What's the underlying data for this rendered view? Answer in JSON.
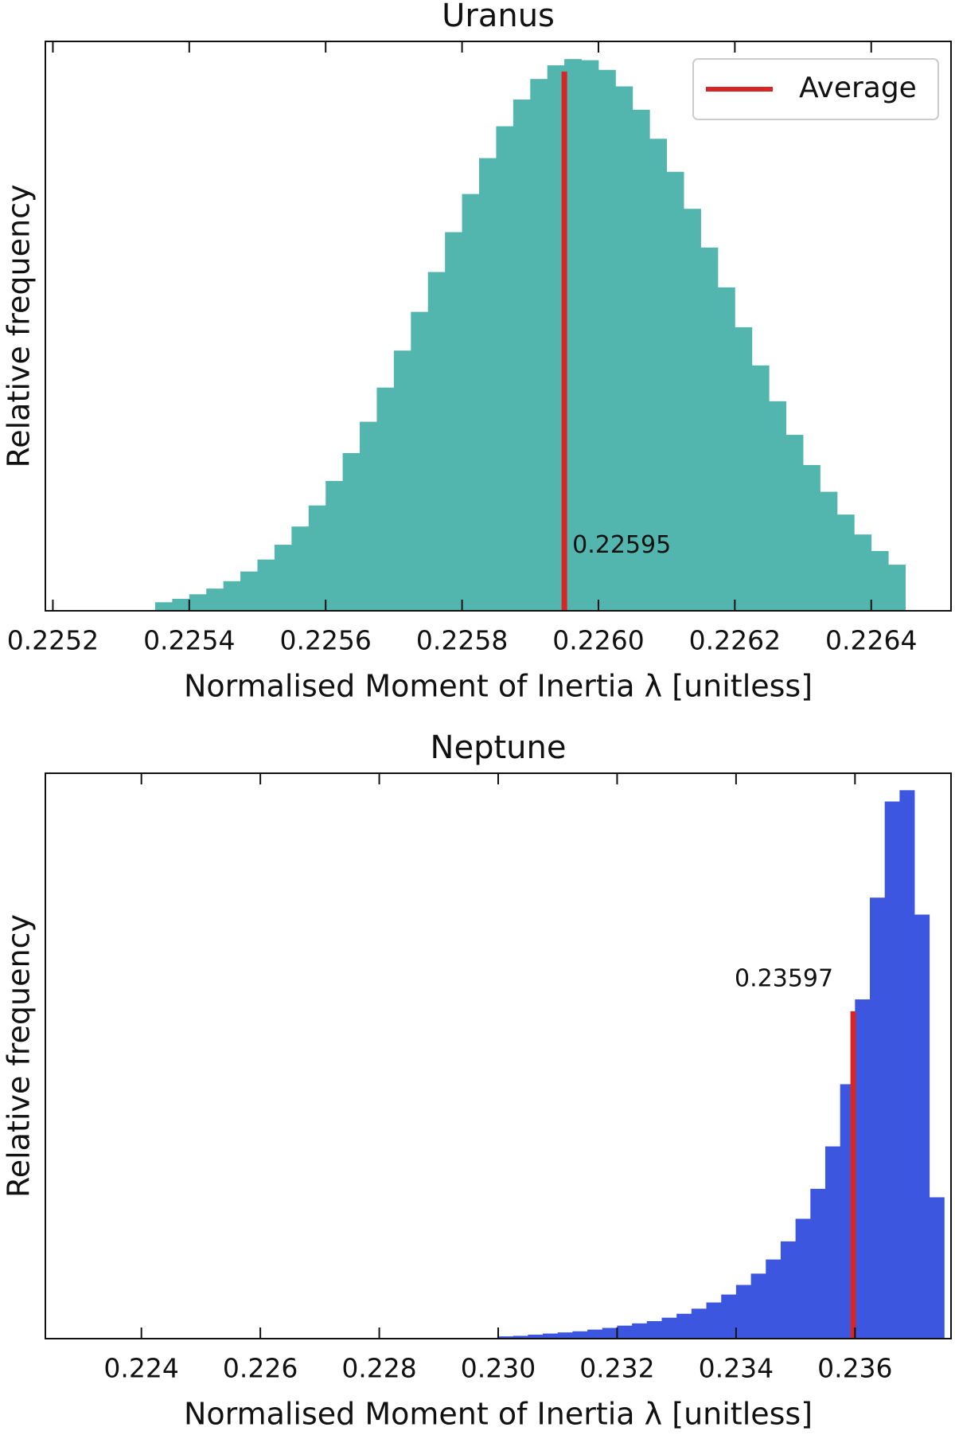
{
  "chart_data": [
    {
      "type": "histogram",
      "title": "Uranus",
      "xlabel": "Normalised Moment of Inertia λ [unitless]",
      "ylabel": "Relative frequency",
      "color": "#52b5ae",
      "bins": [
        0.22535,
        0.225375,
        0.2254,
        0.225425,
        0.22545,
        0.225475,
        0.2255,
        0.225525,
        0.22555,
        0.225575,
        0.2256,
        0.225625,
        0.22565,
        0.225675,
        0.2257,
        0.225725,
        0.22575,
        0.225775,
        0.2258,
        0.225825,
        0.22585,
        0.225875,
        0.2259,
        0.225925,
        0.22595,
        0.225975,
        0.226,
        0.226025,
        0.22605,
        0.226075,
        0.2261,
        0.226125,
        0.22615,
        0.226175,
        0.2262,
        0.226225,
        0.22625,
        0.226275,
        0.2263,
        0.226325,
        0.22635,
        0.226375,
        0.2264,
        0.226425,
        0.22645
      ],
      "values": [
        0.015,
        0.021,
        0.029,
        0.039,
        0.052,
        0.069,
        0.09,
        0.116,
        0.148,
        0.185,
        0.228,
        0.277,
        0.332,
        0.392,
        0.457,
        0.525,
        0.595,
        0.665,
        0.732,
        0.795,
        0.851,
        0.898,
        0.934,
        0.958,
        0.969,
        0.967,
        0.95,
        0.921,
        0.88,
        0.829,
        0.771,
        0.706,
        0.638,
        0.568,
        0.498,
        0.431,
        0.368,
        0.309,
        0.256,
        0.209,
        0.169,
        0.134,
        0.105,
        0.081
      ],
      "average": {
        "name": "Average",
        "color": "#d62728",
        "value": 0.22595,
        "height": 0.947
      },
      "legend": "upper right",
      "xlim": [
        0.225189,
        0.226517
      ],
      "ylim": [
        0,
        1
      ],
      "xticks": [
        0.2252,
        0.2254,
        0.2256,
        0.2258,
        {
          "value": 0.226,
          "label": "0.2260"
        },
        0.2262,
        0.2264
      ]
    },
    {
      "type": "histogram",
      "title": "Neptune",
      "xlabel": "Normalised Moment of Inertia λ [unitless]",
      "ylabel": "Relative frequency",
      "color": "#3d56e0",
      "bins": [
        0.23,
        0.23025,
        0.2305,
        0.23075,
        0.231,
        0.23125,
        0.2315,
        0.23175,
        0.232,
        0.23225,
        0.2325,
        0.23275,
        0.233,
        0.23325,
        0.2335,
        0.23375,
        0.234,
        0.23425,
        0.2345,
        0.23475,
        0.235,
        0.23525,
        0.2355,
        0.23575,
        0.236,
        0.23625,
        0.2365,
        0.23675,
        0.237,
        0.23725,
        0.2375
      ],
      "values": [
        0.004,
        0.005,
        0.007,
        0.009,
        0.011,
        0.013,
        0.016,
        0.019,
        0.023,
        0.027,
        0.031,
        0.037,
        0.044,
        0.053,
        0.064,
        0.078,
        0.095,
        0.115,
        0.14,
        0.172,
        0.212,
        0.265,
        0.34,
        0.45,
        0.6,
        0.78,
        0.95,
        0.97,
        0.75,
        0.25
      ],
      "average": {
        "color": "#d62728",
        "value": 0.23597,
        "height": 0.579
      },
      "xlim": [
        0.222385,
        0.237615
      ],
      "ylim": [
        0,
        1
      ],
      "xticks": [
        0.224,
        0.226,
        0.228,
        {
          "value": 0.23,
          "label": "0.230"
        },
        0.232,
        0.234,
        0.236
      ]
    }
  ]
}
